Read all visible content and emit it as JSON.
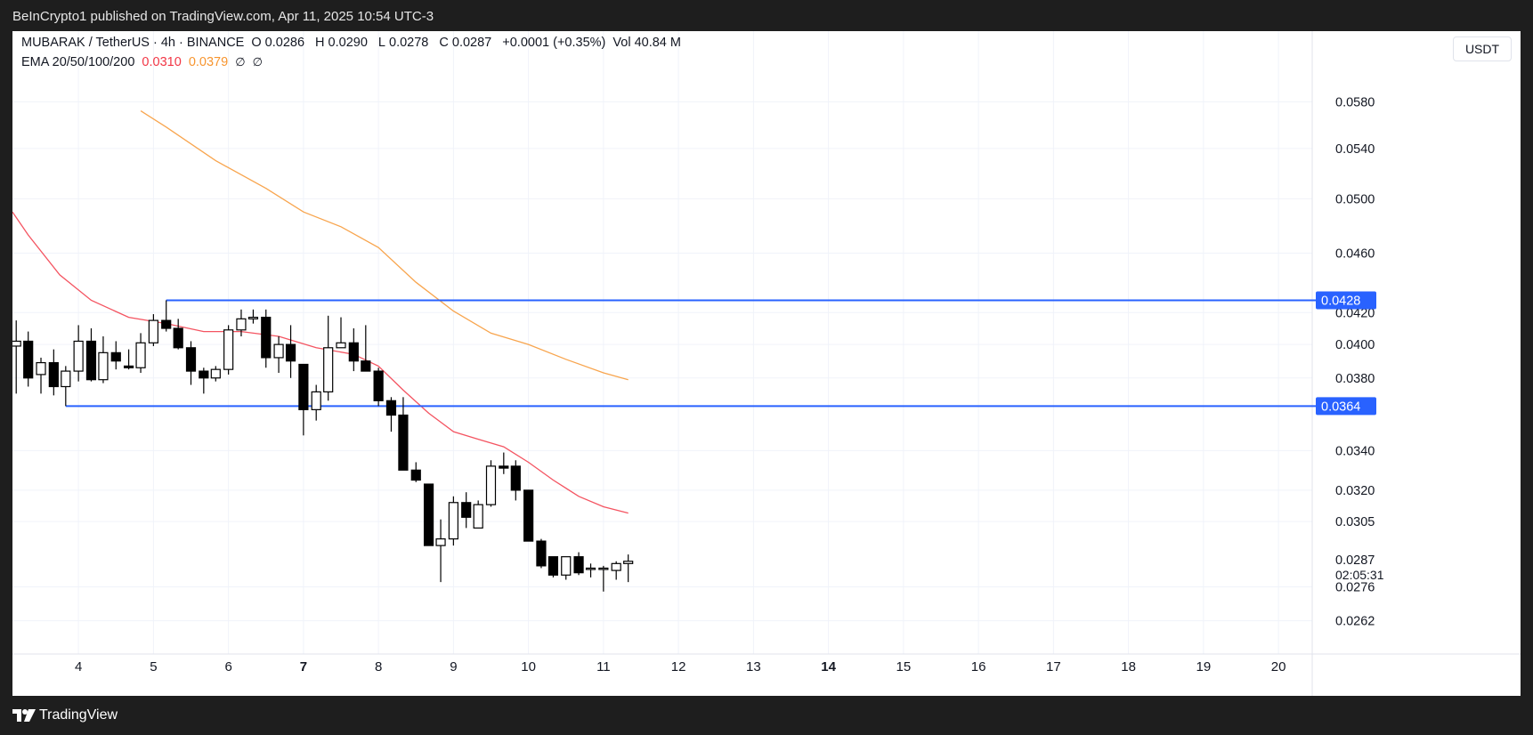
{
  "header": {
    "published_text": "BeInCrypto1 published on TradingView.com, Apr 11, 2025 10:54 UTC-3"
  },
  "legend": {
    "symbol": "MUBARAK / TetherUS · 4h · BINANCE",
    "open_label": "O",
    "open": "0.0286",
    "high_label": "H",
    "high": "0.0290",
    "low_label": "L",
    "low": "0.0278",
    "close_label": "C",
    "close": "0.0287",
    "change": "+0.0001 (+0.35%)",
    "vol_label": "Vol",
    "vol": "40.84 M",
    "ema_label": "EMA 20/50/100/200",
    "ema20": "0.0310",
    "ema50": "0.0379",
    "ema100": "∅",
    "ema200": "∅"
  },
  "currency": "USDT",
  "colors": {
    "up_candle": "#ffffff",
    "down_candle": "#000000",
    "ema20": "#f23645",
    "ema50": "#f7952f",
    "level_line": "#2962ff",
    "grid": "#f0f3fa"
  },
  "footer": {
    "brand": "TradingView"
  },
  "chart_data": {
    "type": "candlestick",
    "symbol": "MUBARAK / TetherUS",
    "interval": "4h",
    "exchange": "BINANCE",
    "x_ticks": [
      {
        "label": "4",
        "x": 4,
        "bold": false
      },
      {
        "label": "5",
        "x": 5,
        "bold": false
      },
      {
        "label": "6",
        "x": 6,
        "bold": false
      },
      {
        "label": "7",
        "x": 7,
        "bold": true
      },
      {
        "label": "8",
        "x": 8,
        "bold": false
      },
      {
        "label": "9",
        "x": 9,
        "bold": false
      },
      {
        "label": "10",
        "x": 10,
        "bold": false
      },
      {
        "label": "11",
        "x": 11,
        "bold": false
      },
      {
        "label": "12",
        "x": 12,
        "bold": false
      },
      {
        "label": "13",
        "x": 13,
        "bold": false
      },
      {
        "label": "14",
        "x": 14,
        "bold": true
      },
      {
        "label": "15",
        "x": 15,
        "bold": false
      },
      {
        "label": "16",
        "x": 16,
        "bold": false
      },
      {
        "label": "17",
        "x": 17,
        "bold": false
      },
      {
        "label": "18",
        "x": 18,
        "bold": false
      },
      {
        "label": "19",
        "x": 19,
        "bold": false
      },
      {
        "label": "20",
        "x": 20,
        "bold": false
      }
    ],
    "xlim": [
      3.12,
      20.45
    ],
    "y_ticks": [
      "0.0580",
      "0.0540",
      "0.0500",
      "0.0460",
      "0.0420",
      "0.0400",
      "0.0380",
      "0.0340",
      "0.0320",
      "0.0305",
      "0.0276",
      "0.0262"
    ],
    "y_scale": "log",
    "ylim": [
      0.0249,
      0.0612
    ],
    "price_lines": [
      {
        "label": "0.0428",
        "value": 0.0428,
        "x_start": 5.17
      },
      {
        "label": "0.0364",
        "value": 0.0364,
        "x_start": 3.83
      }
    ],
    "last_price": {
      "label": "0.0287",
      "countdown": "02:05:31",
      "value": 0.0287
    },
    "candles": [
      {
        "t": 3.17,
        "o": 0.0399,
        "h": 0.0415,
        "l": 0.0371,
        "c": 0.0402
      },
      {
        "t": 3.33,
        "o": 0.0402,
        "h": 0.0408,
        "l": 0.0375,
        "c": 0.038
      },
      {
        "t": 3.5,
        "o": 0.0382,
        "h": 0.0392,
        "l": 0.0371,
        "c": 0.0389
      },
      {
        "t": 3.67,
        "o": 0.0389,
        "h": 0.0397,
        "l": 0.037,
        "c": 0.0375
      },
      {
        "t": 3.83,
        "o": 0.0375,
        "h": 0.0387,
        "l": 0.0364,
        "c": 0.0384
      },
      {
        "t": 4.0,
        "o": 0.0384,
        "h": 0.0412,
        "l": 0.0378,
        "c": 0.0402
      },
      {
        "t": 4.17,
        "o": 0.0402,
        "h": 0.041,
        "l": 0.0378,
        "c": 0.0379
      },
      {
        "t": 4.33,
        "o": 0.0379,
        "h": 0.0405,
        "l": 0.0377,
        "c": 0.0395
      },
      {
        "t": 4.5,
        "o": 0.0395,
        "h": 0.0402,
        "l": 0.0385,
        "c": 0.039
      },
      {
        "t": 4.67,
        "o": 0.0387,
        "h": 0.0397,
        "l": 0.0385,
        "c": 0.0386
      },
      {
        "t": 4.83,
        "o": 0.0386,
        "h": 0.0407,
        "l": 0.0383,
        "c": 0.0401
      },
      {
        "t": 5.0,
        "o": 0.0401,
        "h": 0.0419,
        "l": 0.0399,
        "c": 0.0415
      },
      {
        "t": 5.17,
        "o": 0.0415,
        "h": 0.0428,
        "l": 0.0408,
        "c": 0.041
      },
      {
        "t": 5.33,
        "o": 0.041,
        "h": 0.0416,
        "l": 0.0397,
        "c": 0.0398
      },
      {
        "t": 5.5,
        "o": 0.0398,
        "h": 0.0402,
        "l": 0.0376,
        "c": 0.0384
      },
      {
        "t": 5.67,
        "o": 0.0384,
        "h": 0.0386,
        "l": 0.0371,
        "c": 0.038
      },
      {
        "t": 5.83,
        "o": 0.038,
        "h": 0.0387,
        "l": 0.0378,
        "c": 0.0385
      },
      {
        "t": 6.0,
        "o": 0.0385,
        "h": 0.0412,
        "l": 0.0382,
        "c": 0.0409
      },
      {
        "t": 6.17,
        "o": 0.0409,
        "h": 0.0422,
        "l": 0.0405,
        "c": 0.0416
      },
      {
        "t": 6.33,
        "o": 0.0416,
        "h": 0.0422,
        "l": 0.0413,
        "c": 0.0417
      },
      {
        "t": 6.5,
        "o": 0.0417,
        "h": 0.0422,
        "l": 0.0386,
        "c": 0.0392
      },
      {
        "t": 6.67,
        "o": 0.0392,
        "h": 0.0405,
        "l": 0.0383,
        "c": 0.04
      },
      {
        "t": 6.83,
        "o": 0.04,
        "h": 0.0412,
        "l": 0.038,
        "c": 0.039
      },
      {
        "t": 7.0,
        "o": 0.0388,
        "h": 0.0388,
        "l": 0.0348,
        "c": 0.0362
      },
      {
        "t": 7.17,
        "o": 0.0362,
        "h": 0.0376,
        "l": 0.0356,
        "c": 0.0372
      },
      {
        "t": 7.33,
        "o": 0.0372,
        "h": 0.0418,
        "l": 0.0367,
        "c": 0.0398
      },
      {
        "t": 7.5,
        "o": 0.0398,
        "h": 0.0417,
        "l": 0.0398,
        "c": 0.0401
      },
      {
        "t": 7.67,
        "o": 0.0401,
        "h": 0.041,
        "l": 0.0384,
        "c": 0.039
      },
      {
        "t": 7.83,
        "o": 0.039,
        "h": 0.0412,
        "l": 0.0384,
        "c": 0.0384
      },
      {
        "t": 8.0,
        "o": 0.0384,
        "h": 0.0386,
        "l": 0.0364,
        "c": 0.0367
      },
      {
        "t": 8.17,
        "o": 0.0367,
        "h": 0.0369,
        "l": 0.035,
        "c": 0.0359
      },
      {
        "t": 8.33,
        "o": 0.0359,
        "h": 0.0369,
        "l": 0.033,
        "c": 0.033
      },
      {
        "t": 8.5,
        "o": 0.033,
        "h": 0.0334,
        "l": 0.0324,
        "c": 0.0325
      },
      {
        "t": 8.67,
        "o": 0.0323,
        "h": 0.0323,
        "l": 0.0294,
        "c": 0.0294
      },
      {
        "t": 8.83,
        "o": 0.0294,
        "h": 0.0306,
        "l": 0.0278,
        "c": 0.0297
      },
      {
        "t": 9.0,
        "o": 0.0297,
        "h": 0.0317,
        "l": 0.0294,
        "c": 0.0314
      },
      {
        "t": 9.17,
        "o": 0.0314,
        "h": 0.0319,
        "l": 0.0302,
        "c": 0.0307
      },
      {
        "t": 9.33,
        "o": 0.0302,
        "h": 0.0315,
        "l": 0.0302,
        "c": 0.0313
      },
      {
        "t": 9.5,
        "o": 0.0313,
        "h": 0.0335,
        "l": 0.0312,
        "c": 0.0332
      },
      {
        "t": 9.67,
        "o": 0.0332,
        "h": 0.0339,
        "l": 0.0328,
        "c": 0.0331
      },
      {
        "t": 9.83,
        "o": 0.0332,
        "h": 0.0335,
        "l": 0.0315,
        "c": 0.032
      },
      {
        "t": 10.0,
        "o": 0.032,
        "h": 0.032,
        "l": 0.0296,
        "c": 0.0296
      },
      {
        "t": 10.17,
        "o": 0.0296,
        "h": 0.0297,
        "l": 0.0284,
        "c": 0.0285
      },
      {
        "t": 10.33,
        "o": 0.0289,
        "h": 0.0289,
        "l": 0.028,
        "c": 0.0281
      },
      {
        "t": 10.5,
        "o": 0.0281,
        "h": 0.0289,
        "l": 0.0279,
        "c": 0.0289
      },
      {
        "t": 10.67,
        "o": 0.0289,
        "h": 0.0291,
        "l": 0.0281,
        "c": 0.0282
      },
      {
        "t": 10.83,
        "o": 0.0284,
        "h": 0.0286,
        "l": 0.028,
        "c": 0.0284
      },
      {
        "t": 11.0,
        "o": 0.0284,
        "h": 0.0285,
        "l": 0.0274,
        "c": 0.0284
      },
      {
        "t": 11.17,
        "o": 0.0283,
        "h": 0.0287,
        "l": 0.0279,
        "c": 0.0286
      },
      {
        "t": 11.33,
        "o": 0.0286,
        "h": 0.029,
        "l": 0.0278,
        "c": 0.0287
      }
    ],
    "ema20_series": [
      [
        3.12,
        0.049
      ],
      [
        3.33,
        0.0473
      ],
      [
        3.75,
        0.0445
      ],
      [
        4.17,
        0.0428
      ],
      [
        4.67,
        0.0417
      ],
      [
        5.17,
        0.0413
      ],
      [
        5.67,
        0.0408
      ],
      [
        6.17,
        0.0408
      ],
      [
        6.67,
        0.0405
      ],
      [
        7.17,
        0.0398
      ],
      [
        7.67,
        0.0394
      ],
      [
        8.0,
        0.0387
      ],
      [
        8.33,
        0.0373
      ],
      [
        8.67,
        0.036
      ],
      [
        9.0,
        0.035
      ],
      [
        9.33,
        0.0346
      ],
      [
        9.67,
        0.0342
      ],
      [
        10.0,
        0.0334
      ],
      [
        10.33,
        0.0325
      ],
      [
        10.67,
        0.0317
      ],
      [
        11.0,
        0.0312
      ],
      [
        11.33,
        0.0309
      ]
    ],
    "ema50_series": [
      [
        4.83,
        0.0572
      ],
      [
        5.17,
        0.0558
      ],
      [
        5.83,
        0.053
      ],
      [
        6.5,
        0.0508
      ],
      [
        7.0,
        0.049
      ],
      [
        7.5,
        0.0479
      ],
      [
        8.0,
        0.0464
      ],
      [
        8.5,
        0.044
      ],
      [
        9.0,
        0.0421
      ],
      [
        9.5,
        0.0407
      ],
      [
        10.0,
        0.04
      ],
      [
        10.5,
        0.0391
      ],
      [
        11.0,
        0.0383
      ],
      [
        11.33,
        0.0379
      ]
    ]
  }
}
